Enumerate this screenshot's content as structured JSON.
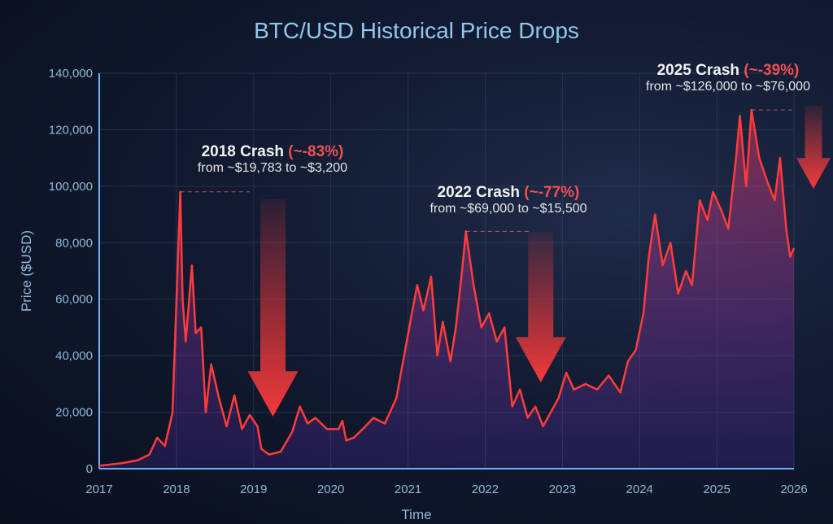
{
  "chart_data": {
    "type": "line",
    "title": "BTC/USD Historical Price Drops",
    "xlabel": "Time",
    "ylabel": "Price ($USD)",
    "xlim": [
      2017,
      2026
    ],
    "ylim": [
      0,
      140000
    ],
    "xticks": [
      "2017",
      "2018",
      "2019",
      "2020",
      "2021",
      "2022",
      "2023",
      "2024",
      "2025",
      "2026"
    ],
    "yticks": [
      "0",
      "20,000",
      "40,000",
      "60,000",
      "80,000",
      "100,000",
      "120,000",
      "140,000"
    ],
    "grid": true,
    "series": [
      {
        "name": "BTC/USD",
        "color": "#ff3b3b",
        "x": [
          2017.0,
          2017.3,
          2017.5,
          2017.65,
          2017.75,
          2017.85,
          2017.95,
          2018.05,
          2018.08,
          2018.12,
          2018.2,
          2018.25,
          2018.32,
          2018.38,
          2018.45,
          2018.55,
          2018.65,
          2018.75,
          2018.85,
          2018.95,
          2019.05,
          2019.1,
          2019.2,
          2019.35,
          2019.5,
          2019.6,
          2019.7,
          2019.8,
          2019.95,
          2020.1,
          2020.15,
          2020.2,
          2020.3,
          2020.45,
          2020.55,
          2020.7,
          2020.85,
          2020.95,
          2021.05,
          2021.12,
          2021.2,
          2021.3,
          2021.38,
          2021.45,
          2021.55,
          2021.62,
          2021.7,
          2021.75,
          2021.85,
          2021.95,
          2022.05,
          2022.15,
          2022.25,
          2022.35,
          2022.45,
          2022.55,
          2022.65,
          2022.75,
          2022.85,
          2022.95,
          2023.05,
          2023.15,
          2023.3,
          2023.45,
          2023.6,
          2023.75,
          2023.85,
          2023.95,
          2024.05,
          2024.12,
          2024.2,
          2024.3,
          2024.4,
          2024.5,
          2024.6,
          2024.68,
          2024.78,
          2024.88,
          2024.95,
          2025.05,
          2025.15,
          2025.25,
          2025.3,
          2025.38,
          2025.45,
          2025.55,
          2025.65,
          2025.75,
          2025.82,
          2025.9,
          2025.95,
          2026.0
        ],
        "y": [
          1000,
          2000,
          3000,
          5000,
          11000,
          8000,
          20000,
          98000,
          60000,
          45000,
          72000,
          48000,
          50000,
          20000,
          37000,
          25000,
          15000,
          26000,
          14000,
          19000,
          15000,
          7000,
          5000,
          6000,
          13000,
          22000,
          16000,
          18000,
          14000,
          14000,
          17000,
          10000,
          11000,
          15000,
          18000,
          16000,
          25000,
          40000,
          55000,
          65000,
          56000,
          68000,
          40000,
          52000,
          38000,
          50000,
          70000,
          84000,
          65000,
          50000,
          55000,
          45000,
          50000,
          22000,
          28000,
          18000,
          22000,
          15000,
          20000,
          25000,
          34000,
          28000,
          30000,
          28000,
          33000,
          27000,
          38000,
          42000,
          55000,
          75000,
          90000,
          72000,
          80000,
          62000,
          70000,
          65000,
          95000,
          88000,
          98000,
          92000,
          85000,
          110000,
          125000,
          100000,
          127000,
          110000,
          102000,
          95000,
          110000,
          85000,
          75000,
          78000
        ]
      }
    ],
    "annotations": [
      {
        "title": "2018 Crash",
        "pct": "(~-83%)",
        "detail": "from ~$19,783 to ~$3,200"
      },
      {
        "title": "2022 Crash",
        "pct": "(~-77%)",
        "detail": "from ~$69,000 to ~$15,500"
      },
      {
        "title": "2025 Crash",
        "pct": "(~-39%)",
        "detail": "from ~$126,000 to ~$76,000"
      }
    ]
  }
}
